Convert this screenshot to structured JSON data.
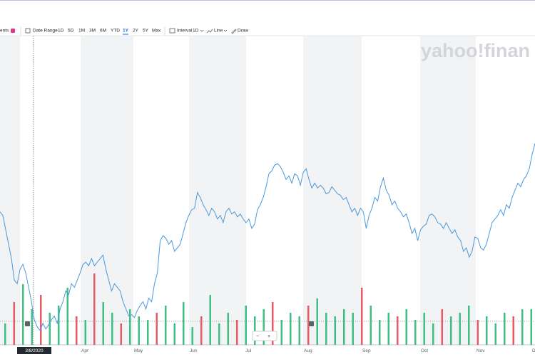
{
  "toolbar": {
    "events": "ents",
    "date_range": "Date Range",
    "ranges": [
      "1D",
      "5D",
      "1M",
      "3M",
      "6M",
      "YTD",
      "1Y",
      "2Y",
      "5Y",
      "Max"
    ],
    "interval_label": "Interval",
    "interval": "1D",
    "chart_style": "Line",
    "draw": "Draw"
  },
  "watermark": "yahoo!finan",
  "chart_data": {
    "type": "line",
    "color": "#4a98dd",
    "values": [
      185,
      180,
      160,
      140,
      120,
      90,
      85,
      105,
      112,
      100,
      80,
      60,
      35,
      25,
      20,
      30,
      22,
      28,
      35,
      40,
      30,
      50,
      60,
      75,
      70,
      85,
      80,
      90,
      100,
      112,
      115,
      110,
      120,
      110,
      115,
      120,
      125,
      105,
      90,
      75,
      85,
      80,
      75,
      60,
      50,
      40,
      42,
      38,
      48,
      55,
      60,
      50,
      65,
      60,
      85,
      100,
      145,
      152,
      148,
      140,
      145,
      130,
      135,
      140,
      155,
      170,
      180,
      188,
      190,
      212,
      205,
      195,
      188,
      180,
      190,
      185,
      175,
      180,
      170,
      185,
      190,
      182,
      185,
      178,
      182,
      175,
      170,
      175,
      162,
      168,
      188,
      195,
      205,
      220,
      238,
      242,
      250,
      252,
      248,
      240,
      230,
      235,
      225,
      238,
      235,
      222,
      240,
      245,
      230,
      218,
      225,
      218,
      222,
      218,
      210,
      212,
      220,
      215,
      210,
      208,
      202,
      205,
      195,
      185,
      190,
      180,
      190,
      185,
      162,
      180,
      190,
      205,
      200,
      220,
      232,
      215,
      208,
      195,
      200,
      190,
      185,
      178,
      182,
      170,
      155,
      162,
      145,
      160,
      165,
      168,
      180,
      182,
      178,
      170,
      168,
      162,
      170,
      162,
      155,
      160,
      150,
      145,
      130,
      135,
      122,
      130,
      150,
      148,
      135,
      132,
      140,
      155,
      170,
      175,
      180,
      188,
      180,
      195,
      190,
      205,
      215,
      225,
      220,
      230,
      235,
      245,
      265,
      280
    ],
    "ylim": [
      0,
      430
    ],
    "xtick_labels": [
      "Apr",
      "May",
      "Jun",
      "Jul",
      "Aug",
      "Sep",
      "Oct",
      "Nov",
      "De"
    ],
    "crosshair_label": "3/8/2020",
    "volume": {
      "ylim": [
        0,
        100
      ],
      "series": [
        {
          "color": "#3fbf83",
          "values": [
            30,
            null,
            85,
            50,
            null,
            45,
            55,
            80,
            null,
            35,
            null,
            60,
            45,
            null,
            50,
            40,
            35,
            null,
            55,
            30,
            60,
            25,
            null,
            70,
            30,
            45,
            null,
            55,
            40,
            50,
            null,
            35,
            45,
            40,
            null,
            65,
            45,
            40,
            50,
            45,
            null,
            55,
            35,
            45,
            null,
            50,
            35,
            45,
            30,
            null,
            40,
            45,
            55,
            null,
            40,
            30,
            45,
            null,
            50,
            50
          ]
        },
        {
          "color": "#ea5a64",
          "values": [
            null,
            60,
            null,
            null,
            70,
            null,
            null,
            null,
            40,
            null,
            100,
            null,
            null,
            30,
            null,
            null,
            null,
            45,
            null,
            null,
            null,
            null,
            40,
            null,
            null,
            null,
            35,
            null,
            null,
            null,
            60,
            null,
            null,
            null,
            55,
            null,
            null,
            null,
            null,
            null,
            80,
            null,
            null,
            null,
            40,
            null,
            null,
            null,
            null,
            50,
            null,
            null,
            null,
            35,
            null,
            null,
            null,
            40,
            null,
            null
          ]
        }
      ]
    }
  }
}
